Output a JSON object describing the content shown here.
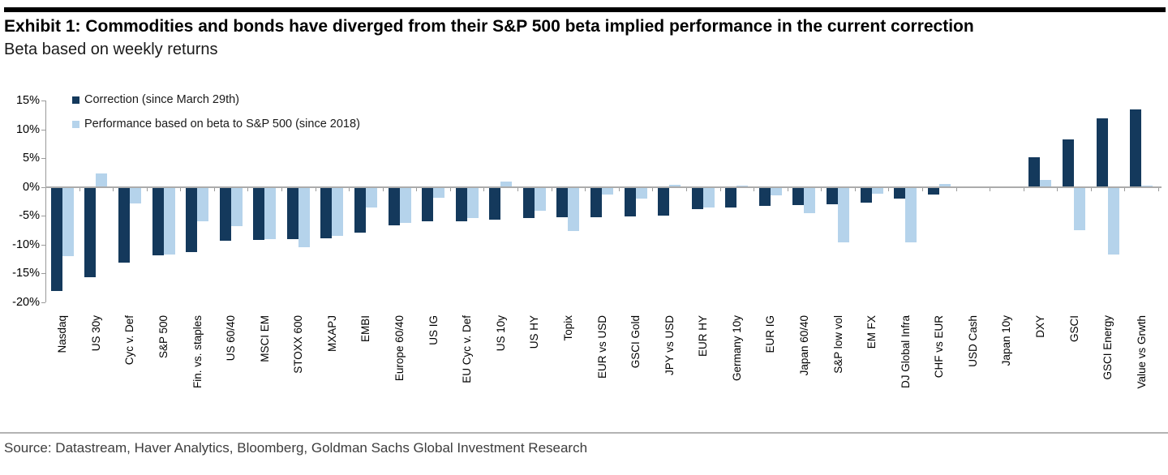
{
  "header": {
    "exhibit_title": "Exhibit 1: Commodities and bonds have diverged from their S&P 500 beta implied performance in the current correction",
    "subtitle": "Beta based on weekly returns"
  },
  "source": "Source: Datastream, Haver Analytics, Bloomberg, Goldman Sachs Global Investment Research",
  "chart_data": {
    "type": "bar",
    "title": "Exhibit 1: Commodities and bonds have diverged from their S&P 500 beta implied performance in the current correction",
    "subtitle": "Beta based on weekly returns",
    "ylabel": "",
    "xlabel": "",
    "ylim": [
      -20,
      15
    ],
    "yticks": [
      15,
      10,
      5,
      0,
      -5,
      -10,
      -15,
      -20
    ],
    "ytick_labels": [
      "15%",
      "10%",
      "5%",
      "0%",
      "-5%",
      "-10%",
      "-15%",
      "-20%"
    ],
    "grid": false,
    "legend_position": "top-left-inside",
    "axis_color": "#9a9a9a",
    "zero_line_color": "#ababab",
    "categories": [
      "Nasdaq",
      "US 30y",
      "Cyc v. Def",
      "S&P 500",
      "Fin. vs. staples",
      "US 60/40",
      "MSCI EM",
      "STOXX 600",
      "MXAPJ",
      "EMBI",
      "Europe 60/40",
      "US IG",
      "EU Cyc v. Def",
      "US 10y",
      "US HY",
      "Topix",
      "EUR vs USD",
      "GSCI Gold",
      "JPY vs USD",
      "EUR HY",
      "Germany 10y",
      "EUR IG",
      "Japan 60/40",
      "S&P low vol",
      "EM FX",
      "DJ Global Infra",
      "CHF vs EUR",
      "USD Cash",
      "Japan 10y",
      "DXY",
      "GSCI",
      "GSCI Energy",
      "Value vs Grwth"
    ],
    "series": [
      {
        "name": "Correction (since March 29th)",
        "color": "#14395c",
        "values": [
          -18.0,
          -15.6,
          -13.1,
          -11.8,
          -11.3,
          -9.3,
          -9.2,
          -9.0,
          -8.9,
          -7.9,
          -6.6,
          -6.0,
          -5.9,
          -5.7,
          -5.4,
          -5.3,
          -5.2,
          -5.1,
          -5.0,
          -3.8,
          -3.6,
          -3.3,
          -3.2,
          -3.0,
          -2.7,
          -2.0,
          -1.3,
          0.0,
          0.0,
          5.1,
          8.2,
          11.9,
          13.5
        ]
      },
      {
        "name": "Performance based on beta to S&P 500 (since 2018)",
        "color": "#b5d3eb",
        "values": [
          -12.0,
          2.4,
          -2.8,
          -11.7,
          -6.0,
          -6.8,
          -9.0,
          -10.4,
          -8.5,
          -3.6,
          -6.2,
          -1.8,
          -5.4,
          1.0,
          -4.1,
          -7.6,
          -1.3,
          -2.0,
          0.4,
          -3.5,
          0.3,
          -1.4,
          -4.6,
          -9.6,
          -1.1,
          -9.6,
          0.5,
          0.0,
          0.0,
          1.2,
          -7.5,
          -11.7,
          0.2
        ]
      }
    ]
  }
}
